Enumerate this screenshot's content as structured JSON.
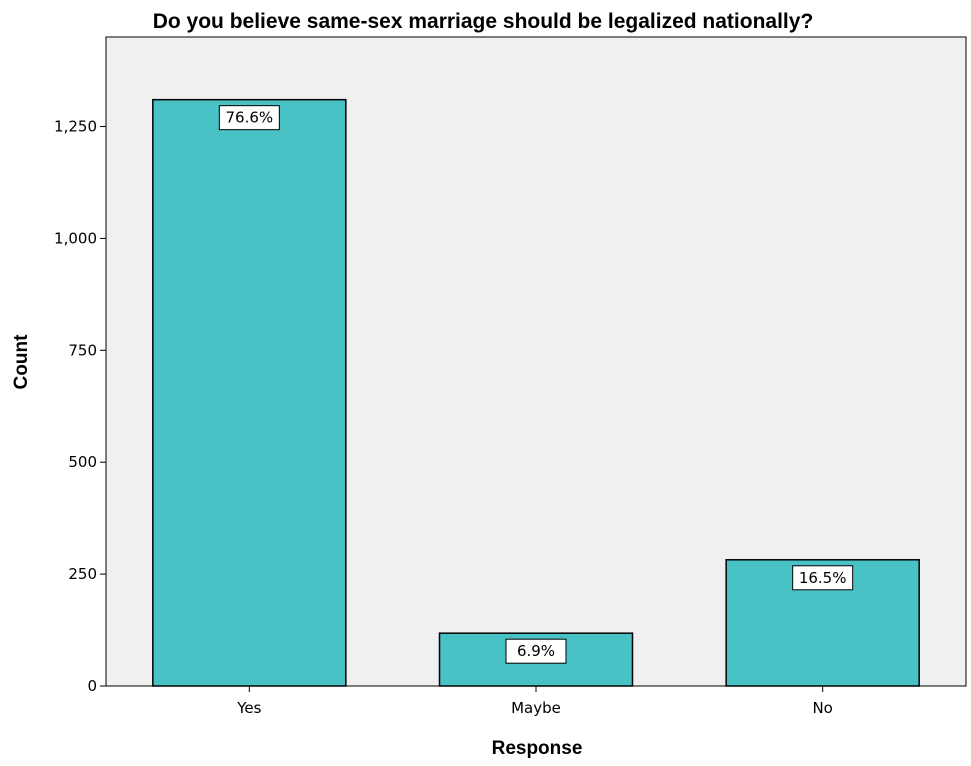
{
  "chart_data": {
    "type": "bar",
    "title": "Do you believe same-sex marriage should be legalized nationally?",
    "xlabel": "Response",
    "ylabel": "Count",
    "categories": [
      "Yes",
      "Maybe",
      "No"
    ],
    "values": [
      1310,
      118,
      282
    ],
    "data_labels": [
      "76.6%",
      "6.9%",
      "16.5%"
    ],
    "ylim": [
      0,
      1450
    ],
    "yticks": [
      0,
      250,
      500,
      750,
      1000,
      1250
    ],
    "ytick_labels": [
      "0",
      "250",
      "500",
      "750",
      "1,000",
      "1,250"
    ],
    "grid": false,
    "legend": "none"
  },
  "colors": {
    "bar_fill": "#48c2c5",
    "bar_stroke": "#000000",
    "plot_background": "#f0f0f0",
    "page_background": "#ffffff"
  }
}
